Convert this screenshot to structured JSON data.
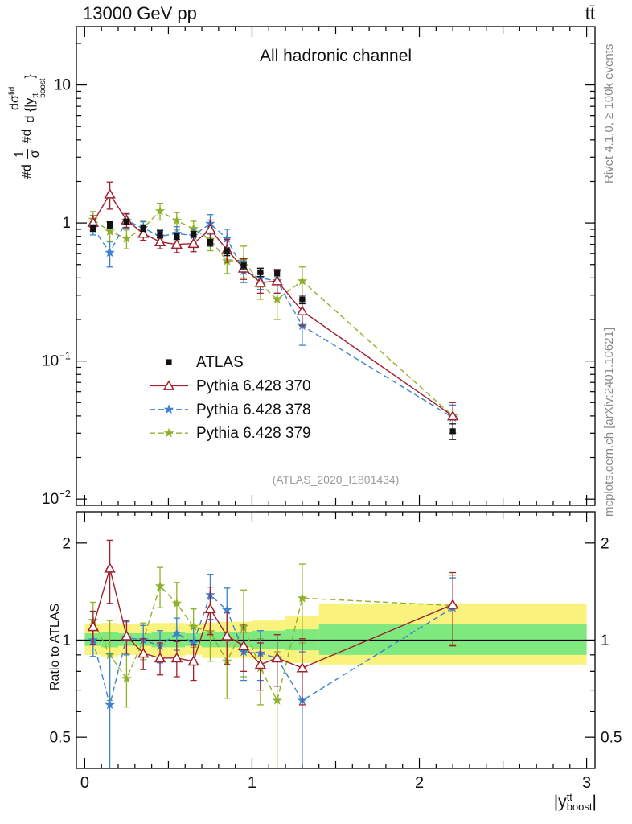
{
  "header": {
    "left": "13000 GeV pp",
    "right": "tt̄"
  },
  "side": {
    "rivet": "Rivet 4.1.0, ≥ 100k events",
    "mcplots": "mcplots.cern.ch [arXiv:2401.10621]"
  },
  "axes": {
    "ylabel": {
      "p1": "#d",
      "num1": "1",
      "den1": "σ",
      "p2": "#d",
      "num2": "dσ",
      "num2sup": "fid",
      "den2": "d {|y",
      "den2sup": "tt",
      "den2sub": "boost",
      "den2end": "}"
    },
    "xlabel": {
      "base": "|y",
      "sup": "tt",
      "sub": "boost",
      "end": "|"
    }
  },
  "chart_data": {
    "type": "scatter",
    "title": "All hadronic channel",
    "watermark": "(ATLAS_2020_I1801434)",
    "xlim": [
      -0.05,
      3.05
    ],
    "xticks": [
      0,
      1,
      2,
      3
    ],
    "x": [
      0.05,
      0.15,
      0.25,
      0.35,
      0.45,
      0.55,
      0.65,
      0.75,
      0.85,
      0.95,
      1.05,
      1.15,
      1.3,
      2.2
    ],
    "bin_edges": [
      0,
      0.1,
      0.2,
      0.3,
      0.4,
      0.5,
      0.6,
      0.7,
      0.8,
      0.9,
      1.0,
      1.1,
      1.2,
      1.4,
      3.0
    ],
    "main": {
      "ylim": [
        0.009,
        26.5
      ],
      "yticks": [
        {
          "v": 10,
          "t": "10"
        },
        {
          "v": 1,
          "t": "1"
        },
        {
          "v": 0.1,
          "t": "10",
          "e": "−1"
        },
        {
          "v": 0.01,
          "t": "10",
          "e": "−2"
        }
      ],
      "series": [
        {
          "name": "ATLAS",
          "marker": "square",
          "color": "#111111",
          "line": "none",
          "values": [
            0.92,
            0.97,
            1.02,
            0.92,
            0.83,
            0.8,
            0.83,
            0.72,
            0.62,
            0.49,
            0.44,
            0.43,
            0.28,
            0.031
          ],
          "errors": [
            0.05,
            0.05,
            0.05,
            0.05,
            0.05,
            0.04,
            0.04,
            0.04,
            0.04,
            0.03,
            0.03,
            0.03,
            0.02,
            0.004
          ]
        },
        {
          "name": "Pythia 6.428 370",
          "marker": "triangle",
          "color": "#a0202e",
          "line": "solid",
          "values": [
            1.01,
            1.62,
            1.05,
            0.84,
            0.73,
            0.7,
            0.71,
            0.9,
            0.64,
            0.47,
            0.37,
            0.38,
            0.23,
            0.04
          ],
          "errors": [
            0.12,
            0.36,
            0.12,
            0.09,
            0.08,
            0.09,
            0.09,
            0.15,
            0.12,
            0.08,
            0.06,
            0.07,
            0.05,
            0.01
          ]
        },
        {
          "name": "Pythia 6.428 378",
          "marker": "star",
          "color": "#3b82d0",
          "line": "dash",
          "values": [
            0.92,
            0.61,
            1.04,
            0.92,
            0.8,
            0.84,
            0.81,
            0.99,
            0.77,
            0.45,
            0.4,
            0.38,
            0.18,
            0.039
          ],
          "errors": [
            0.1,
            0.13,
            0.12,
            0.1,
            0.09,
            0.1,
            0.09,
            0.16,
            0.13,
            0.08,
            0.07,
            0.07,
            0.05,
            0.009
          ]
        },
        {
          "name": "Pythia 6.428 379",
          "marker": "star",
          "color": "#8fb02a",
          "line": "dash",
          "values": [
            1.06,
            0.87,
            0.77,
            0.92,
            1.22,
            1.04,
            0.91,
            0.76,
            0.53,
            0.54,
            0.36,
            0.28,
            0.38,
            0.04
          ],
          "errors": [
            0.15,
            0.14,
            0.12,
            0.11,
            0.17,
            0.15,
            0.12,
            0.13,
            0.1,
            0.14,
            0.08,
            0.08,
            0.1,
            0.01
          ]
        }
      ]
    },
    "ratio": {
      "ylabel": "Ratio to ATLAS",
      "ylim": [
        0.4,
        2.5
      ],
      "yticks": [
        {
          "v": 2,
          "t": "2"
        },
        {
          "v": 1,
          "t": "1"
        },
        {
          "v": 0.5,
          "t": "0.5"
        }
      ],
      "bands": {
        "yellow": {
          "color": "#f9f37e",
          "lo": [
            0.9,
            0.89,
            0.9,
            0.9,
            0.89,
            0.89,
            0.9,
            0.88,
            0.88,
            0.88,
            0.87,
            0.87,
            0.85,
            0.84
          ],
          "hi": [
            1.12,
            1.13,
            1.12,
            1.12,
            1.13,
            1.13,
            1.12,
            1.13,
            1.14,
            1.14,
            1.15,
            1.15,
            1.19,
            1.3
          ]
        },
        "green": {
          "color": "#7fe87f",
          "lo": [
            0.96,
            0.95,
            0.96,
            0.96,
            0.95,
            0.95,
            0.96,
            0.95,
            0.95,
            0.95,
            0.94,
            0.94,
            0.93,
            0.9
          ],
          "hi": [
            1.05,
            1.06,
            1.05,
            1.05,
            1.06,
            1.06,
            1.05,
            1.06,
            1.06,
            1.06,
            1.07,
            1.07,
            1.08,
            1.12
          ]
        }
      },
      "series": [
        {
          "name": "Pythia 6.428 370",
          "marker": "triangle",
          "color": "#a0202e",
          "line": "solid",
          "values": [
            1.1,
            1.67,
            1.03,
            0.91,
            0.88,
            0.88,
            0.86,
            1.25,
            1.03,
            0.96,
            0.84,
            0.88,
            0.82,
            1.29
          ],
          "errors": [
            0.13,
            0.37,
            0.12,
            0.1,
            0.1,
            0.11,
            0.11,
            0.21,
            0.19,
            0.16,
            0.14,
            0.16,
            0.19,
            0.33
          ]
        },
        {
          "name": "Pythia 6.428 378",
          "marker": "star",
          "color": "#3b82d0",
          "line": "dash",
          "values": [
            1.0,
            0.63,
            1.02,
            1.0,
            0.96,
            1.05,
            0.98,
            1.38,
            1.24,
            0.92,
            0.91,
            0.88,
            0.65,
            1.26
          ],
          "errors": [
            0.11,
            0.28,
            0.12,
            0.11,
            0.11,
            0.12,
            0.11,
            0.22,
            0.21,
            0.17,
            0.16,
            0.16,
            0.27,
            0.3
          ]
        },
        {
          "name": "Pythia 6.428 379",
          "marker": "star",
          "color": "#8fb02a",
          "line": "dash",
          "values": [
            1.15,
            0.9,
            0.76,
            1.0,
            1.47,
            1.3,
            1.1,
            1.06,
            0.86,
            1.1,
            0.82,
            0.65,
            1.35,
            1.28
          ],
          "errors": [
            0.16,
            0.25,
            0.14,
            0.13,
            0.21,
            0.21,
            0.15,
            0.2,
            0.2,
            0.33,
            0.19,
            0.27,
            0.37,
            0.31
          ]
        }
      ]
    }
  }
}
